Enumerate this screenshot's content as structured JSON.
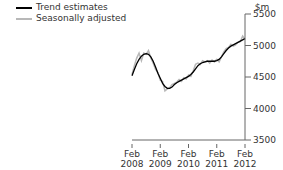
{
  "chart_data": {
    "type": "line",
    "ylabel": "$m",
    "categories": [
      "Feb 2008",
      null,
      null,
      null,
      null,
      null,
      null,
      null,
      null,
      null,
      null,
      null,
      "Feb 2009",
      null,
      null,
      null,
      null,
      null,
      null,
      null,
      null,
      null,
      null,
      null,
      "Feb 2010",
      null,
      null,
      null,
      null,
      null,
      null,
      null,
      null,
      null,
      null,
      null,
      "Feb 2011",
      null,
      null,
      null,
      null,
      null,
      null,
      null,
      null,
      null,
      null,
      null,
      "Feb 2012"
    ],
    "series": [
      {
        "name": "Trend estimates",
        "color": "#000000",
        "values": [
          4520,
          4620,
          4710,
          4780,
          4830,
          4860,
          4870,
          4860,
          4820,
          4750,
          4660,
          4560,
          4480,
          4400,
          4350,
          4320,
          4320,
          4340,
          4380,
          4410,
          4430,
          4450,
          4470,
          4490,
          4510,
          4540,
          4580,
          4630,
          4680,
          4710,
          4730,
          4740,
          4750,
          4750,
          4750,
          4750,
          4760,
          4780,
          4820,
          4870,
          4920,
          4960,
          4990,
          5010,
          5030,
          5050,
          5070,
          5090,
          5110
        ]
      },
      {
        "name": "Seasonally adjusted",
        "color": "#b8b8b8",
        "values": [
          4540,
          4680,
          4800,
          4880,
          4760,
          4880,
          4860,
          4920,
          4800,
          4720,
          4620,
          4570,
          4450,
          4430,
          4280,
          4310,
          4330,
          4380,
          4400,
          4420,
          4460,
          4430,
          4490,
          4470,
          4530,
          4510,
          4600,
          4700,
          4720,
          4700,
          4760,
          4740,
          4760,
          4720,
          4770,
          4740,
          4780,
          4740,
          4820,
          4900,
          4950,
          4970,
          5020,
          4990,
          5010,
          5050,
          5060,
          5150,
          5100
        ]
      }
    ],
    "ylim": [
      3500,
      5500
    ],
    "yticks": [
      3500,
      4000,
      4500,
      5000,
      5500
    ],
    "grid": false,
    "legend": "top-left"
  }
}
